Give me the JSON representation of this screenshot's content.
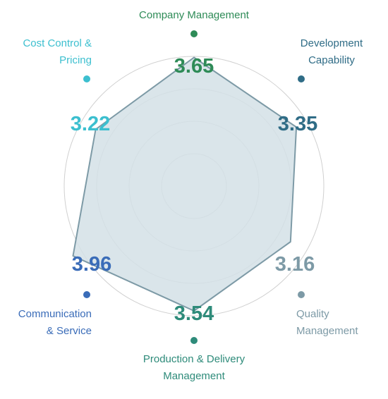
{
  "chart_data": {
    "type": "radar",
    "scale_max": 4,
    "rings": 5,
    "axes": [
      {
        "name": "Company Management",
        "value": 3.65,
        "color": "#2e8b57"
      },
      {
        "name": "Development Capability",
        "value": 3.35,
        "color": "#2f6c86"
      },
      {
        "name": "Quality Management",
        "value": 3.16,
        "color": "#7d9aa6"
      },
      {
        "name": "Production & Delivery Management",
        "value": 3.54,
        "color": "#2e8b7a"
      },
      {
        "name": "Communication & Service",
        "value": 3.96,
        "color": "#3a6cb8"
      },
      {
        "name": "Cost Control & Pricing",
        "value": 3.22,
        "color": "#3cbfcf"
      }
    ],
    "labels": {
      "company": "Company Management",
      "development": [
        "Development",
        "Capability"
      ],
      "quality": [
        "Quality",
        "Management"
      ],
      "production": [
        "Production & Delivery",
        "Management"
      ],
      "communication": [
        "Communication",
        "& Service"
      ],
      "cost": [
        "Cost Control &",
        "Pricing"
      ]
    },
    "value_text": {
      "company": "3.65",
      "development": "3.35",
      "quality": "3.16",
      "production": "3.54",
      "communication": "3.96",
      "cost": "3.22"
    },
    "polygon_fill": "#d4e0e6",
    "polygon_stroke": "#7d9aa6",
    "ring_color": "#d0d0d0"
  }
}
